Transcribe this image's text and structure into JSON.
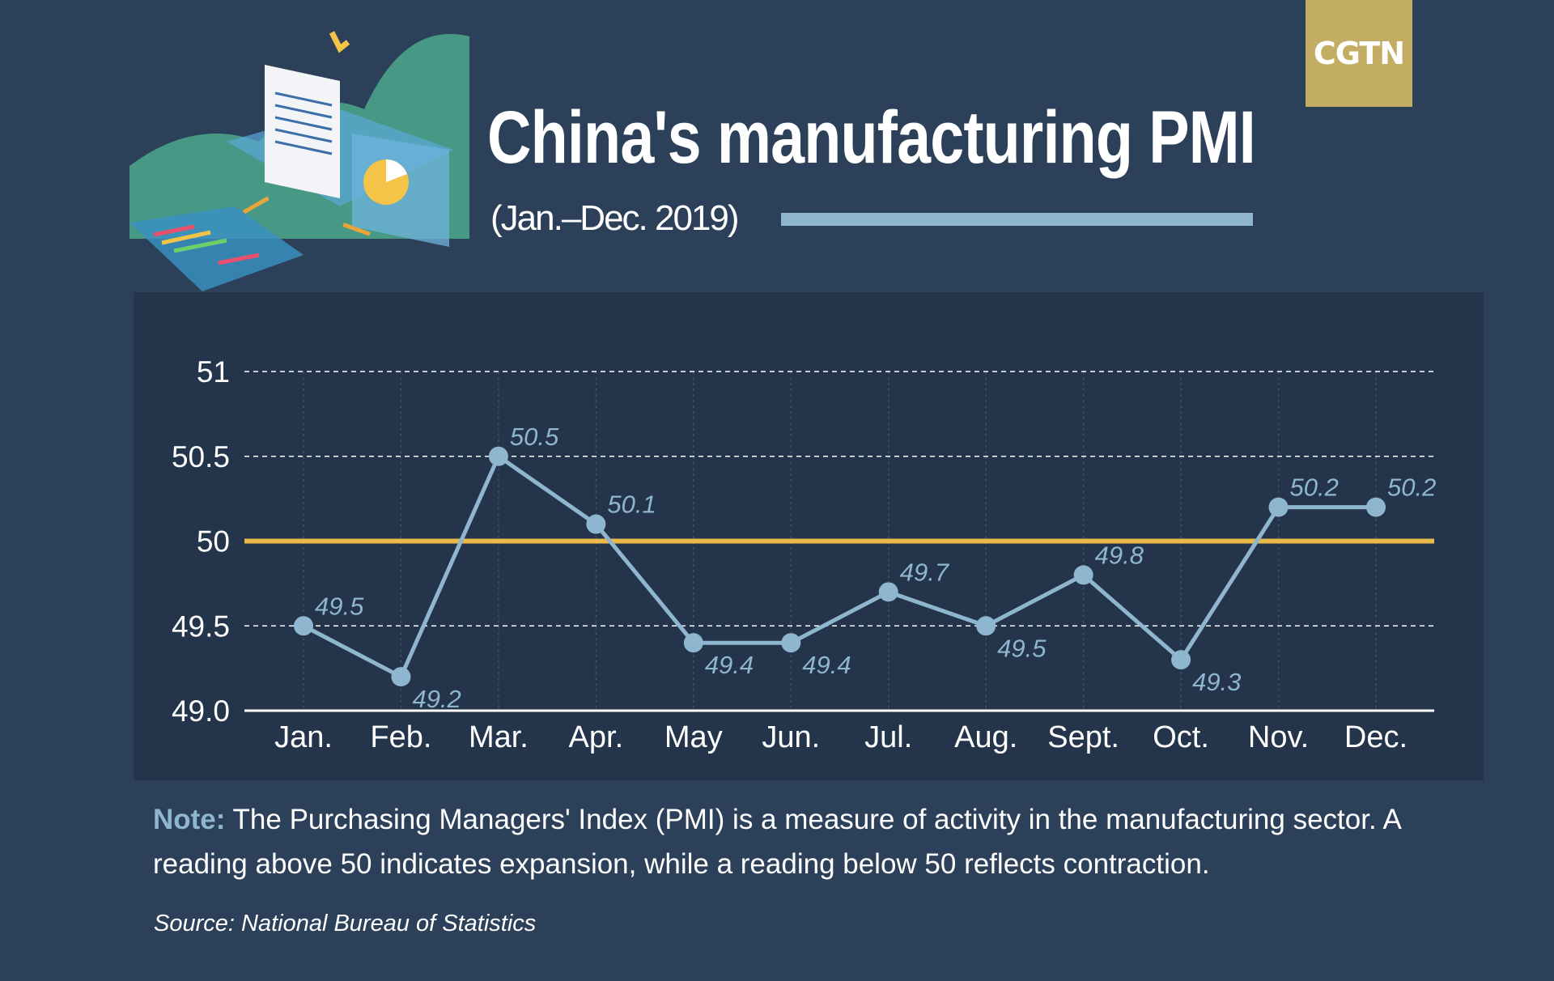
{
  "brand": {
    "logo_text": "CGTN",
    "logo_color": "#c2ad62"
  },
  "header": {
    "title": "China's manufacturing PMI",
    "subtitle": "(Jan.–Dec. 2019)"
  },
  "chart_data": {
    "type": "line",
    "title": "China's manufacturing PMI",
    "subtitle": "(Jan.–Dec. 2019)",
    "categories": [
      "Jan.",
      "Feb.",
      "Mar.",
      "Apr.",
      "May",
      "Jun.",
      "Jul.",
      "Aug.",
      "Sept.",
      "Oct.",
      "Nov.",
      "Dec."
    ],
    "series": [
      {
        "name": "PMI",
        "values": [
          49.5,
          49.2,
          50.5,
          50.1,
          49.4,
          49.4,
          49.7,
          49.5,
          49.8,
          49.3,
          50.2,
          50.2
        ],
        "color": "#8fb6cf"
      }
    ],
    "data_labels": [
      "49.5",
      "49.2",
      "50.5",
      "50.1",
      "49.4",
      "49.4",
      "49.7",
      "49.5",
      "49.8",
      "49.3",
      "50.2",
      "50.2"
    ],
    "yticks": [
      {
        "value": 49.0,
        "label": "49.0"
      },
      {
        "value": 49.5,
        "label": "49.5"
      },
      {
        "value": 50,
        "label": "50"
      },
      {
        "value": 50.5,
        "label": "50.5"
      },
      {
        "value": 51,
        "label": "51"
      }
    ],
    "ylim": [
      49,
      51
    ],
    "reference_line": {
      "value": 50,
      "color": "#e9b949"
    },
    "grid": true,
    "xlabel": "",
    "ylabel": ""
  },
  "note": {
    "label": "Note:",
    "text": " The Purchasing Managers' Index (PMI) is a measure of activity in the manufacturing sector. A reading above 50 indicates expansion, while a reading below 50 reflects contraction."
  },
  "source": "Source: National Bureau of Statistics"
}
